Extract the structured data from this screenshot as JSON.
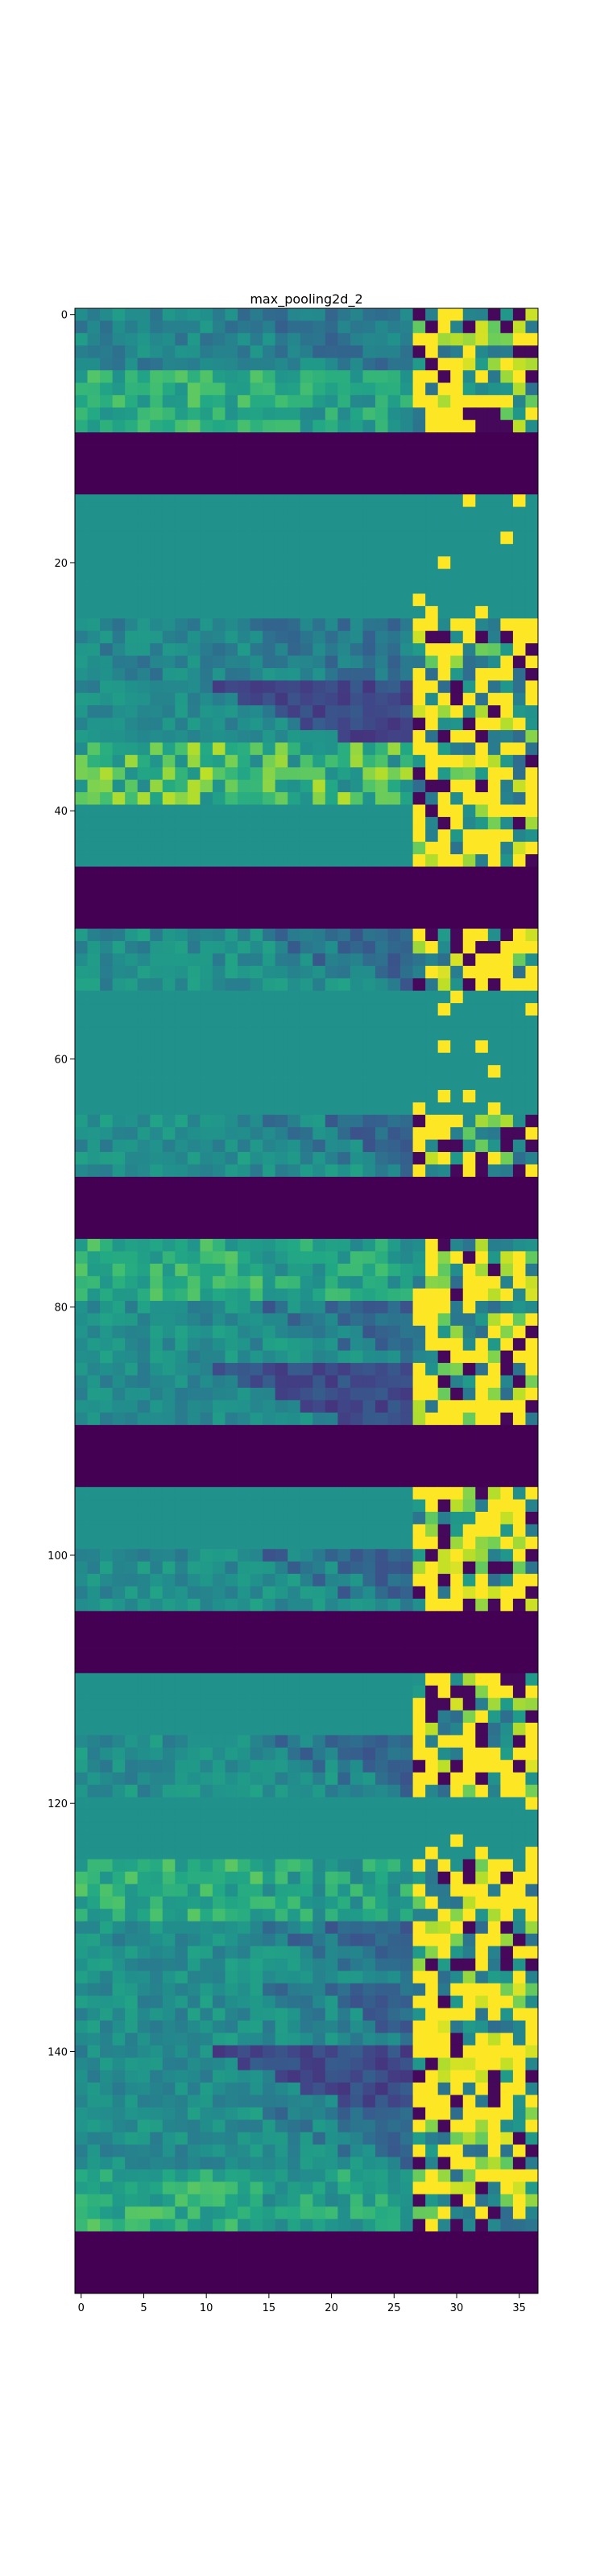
{
  "chart_data": {
    "type": "heatmap",
    "title": "max_pooling2d_2",
    "xlabel": "",
    "ylabel": "",
    "colormap": "viridis",
    "value_range": [
      0,
      1
    ],
    "cols": 37,
    "rows": 160,
    "xlim": [
      -0.5,
      36.5
    ],
    "ylim": [
      159.5,
      -0.5
    ],
    "x_ticks": [
      0,
      5,
      10,
      15,
      20,
      25,
      30,
      35
    ],
    "y_ticks": [
      0,
      20,
      40,
      60,
      80,
      100,
      120,
      140
    ],
    "x_tick_labels": [
      "0",
      "5",
      "10",
      "15",
      "20",
      "25",
      "30",
      "35"
    ],
    "y_tick_labels": [
      "0",
      "20",
      "40",
      "60",
      "80",
      "100",
      "120",
      "140"
    ],
    "band_height": 5,
    "bands": [
      {
        "start": 0,
        "kind": "bright"
      },
      {
        "start": 5,
        "kind": "bright-green"
      },
      {
        "start": 10,
        "kind": "dead"
      },
      {
        "start": 15,
        "kind": "flat"
      },
      {
        "start": 20,
        "kind": "flat"
      },
      {
        "start": 25,
        "kind": "bright"
      },
      {
        "start": 30,
        "kind": "dark-wedge"
      },
      {
        "start": 35,
        "kind": "noisy"
      },
      {
        "start": 40,
        "kind": "flat-bright"
      },
      {
        "start": 45,
        "kind": "dead"
      },
      {
        "start": 50,
        "kind": "wedge"
      },
      {
        "start": 55,
        "kind": "flat"
      },
      {
        "start": 60,
        "kind": "flat"
      },
      {
        "start": 65,
        "kind": "wedge-bright"
      },
      {
        "start": 70,
        "kind": "dead"
      },
      {
        "start": 75,
        "kind": "bright-green"
      },
      {
        "start": 80,
        "kind": "wedge"
      },
      {
        "start": 85,
        "kind": "dark-wedge"
      },
      {
        "start": 90,
        "kind": "dead"
      },
      {
        "start": 95,
        "kind": "flat-bright"
      },
      {
        "start": 100,
        "kind": "wedge"
      },
      {
        "start": 105,
        "kind": "dead"
      },
      {
        "start": 110,
        "kind": "flat-bright"
      },
      {
        "start": 115,
        "kind": "wedge"
      },
      {
        "start": 120,
        "kind": "flat"
      },
      {
        "start": 125,
        "kind": "bright-green"
      },
      {
        "start": 130,
        "kind": "wedge"
      },
      {
        "start": 135,
        "kind": "wedge"
      },
      {
        "start": 140,
        "kind": "dark-wedge"
      },
      {
        "start": 145,
        "kind": "wedge"
      },
      {
        "start": 150,
        "kind": "bright-green"
      },
      {
        "start": 155,
        "kind": "dead"
      }
    ]
  }
}
